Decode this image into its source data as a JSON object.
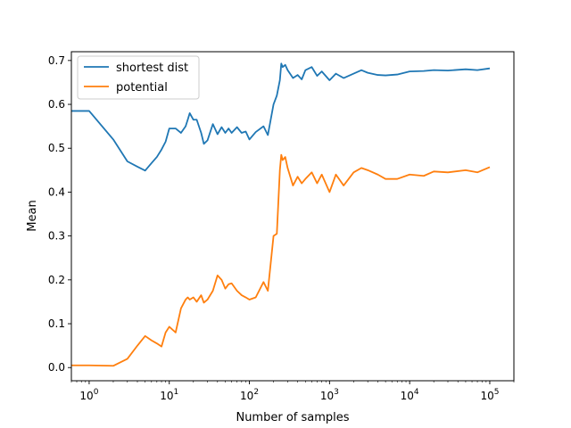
{
  "chart_data": {
    "type": "line",
    "title": "",
    "xlabel": "Number of samples",
    "ylabel": "Mean",
    "xscale": "log",
    "xlim": [
      0.6,
      200000
    ],
    "ylim": [
      -0.03,
      0.72
    ],
    "x_ticks": [
      {
        "base": "10",
        "exp": "0",
        "value": 1
      },
      {
        "base": "10",
        "exp": "1",
        "value": 10
      },
      {
        "base": "10",
        "exp": "2",
        "value": 100
      },
      {
        "base": "10",
        "exp": "3",
        "value": 1000
      },
      {
        "base": "10",
        "exp": "4",
        "value": 10000
      },
      {
        "base": "10",
        "exp": "5",
        "value": 100000
      }
    ],
    "y_ticks": [
      "0.0",
      "0.1",
      "0.2",
      "0.3",
      "0.4",
      "0.5",
      "0.6",
      "0.7"
    ],
    "grid": false,
    "legend_position": "top-left",
    "series": [
      {
        "name": "shortest dist",
        "color": "#1f77b4",
        "x": [
          0.5,
          1,
          2,
          3,
          4,
          5,
          6,
          7,
          8,
          9,
          10,
          12,
          14,
          16,
          17,
          18,
          20,
          22,
          25,
          27,
          30,
          35,
          40,
          45,
          50,
          55,
          60,
          70,
          80,
          90,
          100,
          120,
          150,
          170,
          200,
          220,
          240,
          250,
          260,
          280,
          300,
          350,
          400,
          450,
          500,
          600,
          700,
          800,
          1000,
          1200,
          1500,
          2000,
          2500,
          3000,
          4000,
          5000,
          7000,
          10000,
          15000,
          20000,
          30000,
          50000,
          70000,
          100000
        ],
        "y": [
          0.585,
          0.585,
          0.52,
          0.47,
          0.458,
          0.449,
          0.466,
          0.48,
          0.497,
          0.515,
          0.545,
          0.545,
          0.535,
          0.55,
          0.565,
          0.58,
          0.565,
          0.565,
          0.535,
          0.51,
          0.518,
          0.555,
          0.532,
          0.548,
          0.535,
          0.545,
          0.535,
          0.548,
          0.535,
          0.538,
          0.52,
          0.537,
          0.55,
          0.53,
          0.6,
          0.62,
          0.655,
          0.693,
          0.685,
          0.69,
          0.678,
          0.66,
          0.667,
          0.657,
          0.678,
          0.685,
          0.665,
          0.675,
          0.655,
          0.67,
          0.66,
          0.67,
          0.678,
          0.672,
          0.667,
          0.666,
          0.668,
          0.675,
          0.676,
          0.678,
          0.677,
          0.68,
          0.678,
          0.682
        ]
      },
      {
        "name": "potential",
        "color": "#ff7f0e",
        "x": [
          0.5,
          1,
          2,
          3,
          4,
          5,
          6,
          7,
          8,
          9,
          10,
          12,
          14,
          16,
          17,
          18,
          20,
          22,
          25,
          27,
          30,
          35,
          40,
          45,
          50,
          55,
          60,
          70,
          80,
          90,
          100,
          120,
          150,
          170,
          200,
          220,
          240,
          250,
          260,
          280,
          300,
          350,
          400,
          450,
          500,
          600,
          700,
          800,
          1000,
          1200,
          1500,
          2000,
          2500,
          3000,
          4000,
          5000,
          7000,
          10000,
          15000,
          20000,
          30000,
          50000,
          70000,
          100000
        ],
        "y": [
          0.005,
          0.005,
          0.004,
          0.02,
          0.05,
          0.072,
          0.062,
          0.055,
          0.048,
          0.08,
          0.093,
          0.08,
          0.135,
          0.155,
          0.16,
          0.155,
          0.16,
          0.15,
          0.165,
          0.148,
          0.155,
          0.175,
          0.21,
          0.2,
          0.18,
          0.19,
          0.192,
          0.175,
          0.165,
          0.16,
          0.155,
          0.16,
          0.195,
          0.175,
          0.3,
          0.305,
          0.45,
          0.485,
          0.473,
          0.48,
          0.455,
          0.415,
          0.435,
          0.42,
          0.43,
          0.445,
          0.42,
          0.44,
          0.4,
          0.44,
          0.415,
          0.445,
          0.455,
          0.45,
          0.44,
          0.43,
          0.43,
          0.44,
          0.437,
          0.447,
          0.445,
          0.45,
          0.445,
          0.457
        ]
      }
    ]
  }
}
